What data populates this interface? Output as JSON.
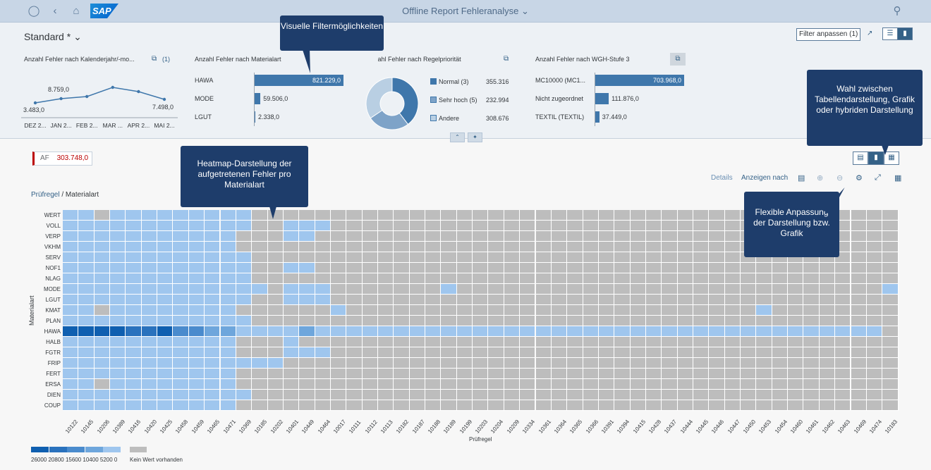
{
  "shell": {
    "title": "Offline Report Fehleranalyse",
    "logo_text": "SAP",
    "icons": [
      "user-icon",
      "back-icon",
      "home-icon",
      "search-icon"
    ]
  },
  "header": {
    "variant": "Standard *",
    "filter_button": "Filter anpassen (1)",
    "cards": [
      {
        "title": "Anzahl Fehler nach Kalenderjahr/-mo...",
        "badge": "(1)",
        "type": "line",
        "x": [
          "DEZ 2...",
          "JAN 2...",
          "FEB 2...",
          "MAR ...",
          "APR 2...",
          "MAI 2..."
        ],
        "values": [
          3483.0,
          7200.0,
          7700.0,
          8759.0,
          8000.0,
          7498.0
        ],
        "labels": [
          "3.483,0",
          "8.759,0",
          "7.498,0"
        ]
      },
      {
        "title": "Anzahl Fehler nach Materialart",
        "type": "bar",
        "categories": [
          "HAWA",
          "MODE",
          "LGUT"
        ],
        "values": [
          821229.0,
          59506.0,
          2338.0
        ],
        "labels": [
          "821.229,0",
          "59.506,0",
          "2.338,0"
        ]
      },
      {
        "title": "Anzahl Fehler nach Regelpriorität",
        "type": "pie",
        "legend": [
          "Normal (3)",
          "Sehr hoch (5)",
          "Andere"
        ],
        "values_text": [
          "355.316",
          "232.994",
          "308.676"
        ],
        "values": [
          355316,
          232994,
          308676
        ],
        "colors": [
          "#3f77ab",
          "#7ea3c8",
          "#b9cfe3"
        ]
      },
      {
        "title": "Anzahl Fehler nach WGH-Stufe 3",
        "type": "bar",
        "categories": [
          "MC10000 (MC1...",
          "Nicht zugeordnet",
          "TEXTIL (TEXTIL)"
        ],
        "values": [
          703968.0,
          111876.0,
          37449.0
        ],
        "labels": [
          "703.968,0",
          "111.876,0",
          "37.449,0"
        ]
      }
    ]
  },
  "callouts": {
    "filter": "Visuelle Filtermöglichkeiten",
    "display": "Wahl zwischen Tabellendarstellung, Grafik oder hybriden Darstellung",
    "heatmap": "Heatmap-Darstellung der aufgetretenen Fehler pro Materialart",
    "flex": "Flexible Anpassung der Darstellung bzw. Grafik"
  },
  "kpi": {
    "label": "AF",
    "value": "303.748,0"
  },
  "toolbar": {
    "details": "Details",
    "show_by": "Anzeigen nach"
  },
  "breadcrumb": {
    "link": "Prüfregel",
    "sep": "/",
    "current": "Materialart"
  },
  "chart_data": {
    "type": "heatmap",
    "xlabel": "Prüfregel",
    "ylabel": "Materialart",
    "x": [
      "10122",
      "10145",
      "10206",
      "10389",
      "10416",
      "10420",
      "10425",
      "10458",
      "10459",
      "10465",
      "10471",
      "10369",
      "10185",
      "10202",
      "10401",
      "10449",
      "10464",
      "10017",
      "10111",
      "10112",
      "10113",
      "10182",
      "10187",
      "10188",
      "10189",
      "10199",
      "10203",
      "10204",
      "10209",
      "10334",
      "10361",
      "10364",
      "10365",
      "10366",
      "10391",
      "10394",
      "10415",
      "10428",
      "10437",
      "10444",
      "10445",
      "10446",
      "10447",
      "10450",
      "10453",
      "10454",
      "10460",
      "10461",
      "10462",
      "10463",
      "10469",
      "10474",
      "10183"
    ],
    "y": [
      "WERT",
      "VOLL",
      "VERP",
      "VKHM",
      "SERV",
      "NOF1",
      "NLAG",
      "MODE",
      "LGUT",
      "KMAT",
      "PLAN",
      "HAWA",
      "HALB",
      "FGTR",
      "FRIP",
      "FERT",
      "ERSA",
      "DIEN",
      "COUP"
    ],
    "legend": {
      "stops": [
        "26000",
        "20800",
        "15600",
        "10400",
        "5200",
        "0"
      ],
      "colors": [
        "#0f5fb0",
        "#2a72bd",
        "#4a8bcd",
        "#6ea6dc",
        "#9fc6ee"
      ],
      "missing_label": "Kein Wert vorhanden",
      "missing_color": "#bdbdbd"
    },
    "hawa_values": [
      26000,
      23000,
      21500,
      25000,
      19000,
      19500,
      24000,
      11000,
      10500,
      9800,
      9500,
      3000,
      2000,
      0,
      2500,
      9000,
      3500,
      2000,
      1500,
      1500,
      1500,
      1500,
      1500,
      1500,
      1500,
      1500,
      1500,
      1500,
      1500,
      1500,
      1500,
      1500,
      1500,
      1500,
      1500,
      1500,
      1500,
      1500,
      1500,
      1500,
      1500,
      1500,
      1500,
      1500,
      1500,
      1500,
      1500,
      1500,
      1500,
      1500,
      1500,
      1500,
      0
    ]
  }
}
